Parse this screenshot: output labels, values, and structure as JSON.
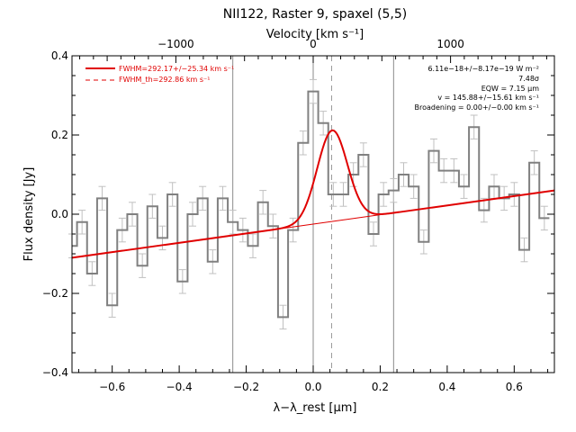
{
  "chart_data": {
    "type": "line",
    "title": "NII122, Raster 9, spaxel (5,5)",
    "xlabel": "λ−λ_rest [μm]",
    "ylabel": "Flux density [Jy]",
    "top_axis_label": "Velocity [km s⁻¹]",
    "xlim": [
      -0.72,
      0.72
    ],
    "ylim": [
      -0.4,
      0.4
    ],
    "x_ticks": [
      -0.6,
      -0.4,
      -0.2,
      0.0,
      0.2,
      0.4,
      0.6
    ],
    "x_tick_labels": [
      "−0.6",
      "−0.4",
      "−0.2",
      "0.0",
      "0.2",
      "0.4",
      "0.6"
    ],
    "y_ticks": [
      -0.4,
      -0.2,
      0.0,
      0.2,
      0.4
    ],
    "y_tick_labels": [
      "−0.4",
      "−0.2",
      "0.0",
      "0.2",
      "0.4"
    ],
    "top_ticks_velocity": [
      -1000,
      0,
      1000
    ],
    "top_tick_labels": [
      "−1000",
      "0",
      "1000"
    ],
    "vertical_lines": [
      -0.24,
      0.0,
      0.24
    ],
    "line_center": 0.055,
    "legend": {
      "position": "top-left",
      "entries": [
        {
          "label": "FWHM=292.17+/−25.34 km s⁻¹",
          "style": "solid",
          "color": "#e00000"
        },
        {
          "label": "FWHM_th=292.86 km s⁻¹",
          "style": "dashed",
          "color": "#e00000"
        }
      ]
    },
    "annotations": [
      "6.11e−18+/−8.17e−19 W m⁻²",
      "7.48σ",
      "EQW = 7.15 μm",
      "v = 145.88+/−15.61 km s⁻¹",
      "Broadening = 0.00+/−0.00 km s⁻¹"
    ],
    "spectrum": {
      "name": "data",
      "color": "#808080",
      "x": [
        -0.72,
        -0.69,
        -0.66,
        -0.63,
        -0.6,
        -0.57,
        -0.54,
        -0.51,
        -0.48,
        -0.45,
        -0.42,
        -0.39,
        -0.36,
        -0.33,
        -0.3,
        -0.27,
        -0.24,
        -0.21,
        -0.18,
        -0.15,
        -0.12,
        -0.09,
        -0.06,
        -0.03,
        0.0,
        0.03,
        0.06,
        0.09,
        0.12,
        0.15,
        0.18,
        0.21,
        0.24,
        0.27,
        0.3,
        0.33,
        0.36,
        0.39,
        0.42,
        0.45,
        0.48,
        0.51,
        0.54,
        0.57,
        0.6,
        0.63,
        0.66,
        0.69
      ],
      "y": [
        -0.08,
        -0.02,
        -0.15,
        0.04,
        -0.23,
        -0.04,
        0.0,
        -0.13,
        0.02,
        -0.06,
        0.05,
        -0.17,
        0.0,
        0.04,
        -0.12,
        0.04,
        -0.02,
        -0.04,
        -0.08,
        0.03,
        -0.03,
        -0.26,
        -0.04,
        0.18,
        0.31,
        0.23,
        0.05,
        0.05,
        0.1,
        0.15,
        -0.05,
        0.05,
        0.06,
        0.1,
        0.07,
        -0.07,
        0.16,
        0.11,
        0.11,
        0.07,
        0.22,
        0.01,
        0.07,
        0.04,
        0.05,
        -0.09,
        0.13,
        -0.01
      ],
      "error": 0.03
    },
    "fit_model": {
      "name": "fit",
      "color": "#e00000",
      "baseline_at_minus_0_72": -0.11,
      "baseline_slope": 0.118,
      "gaussian_amplitude": 0.23,
      "gaussian_center": 0.057,
      "gaussian_sigma": 0.045
    }
  }
}
